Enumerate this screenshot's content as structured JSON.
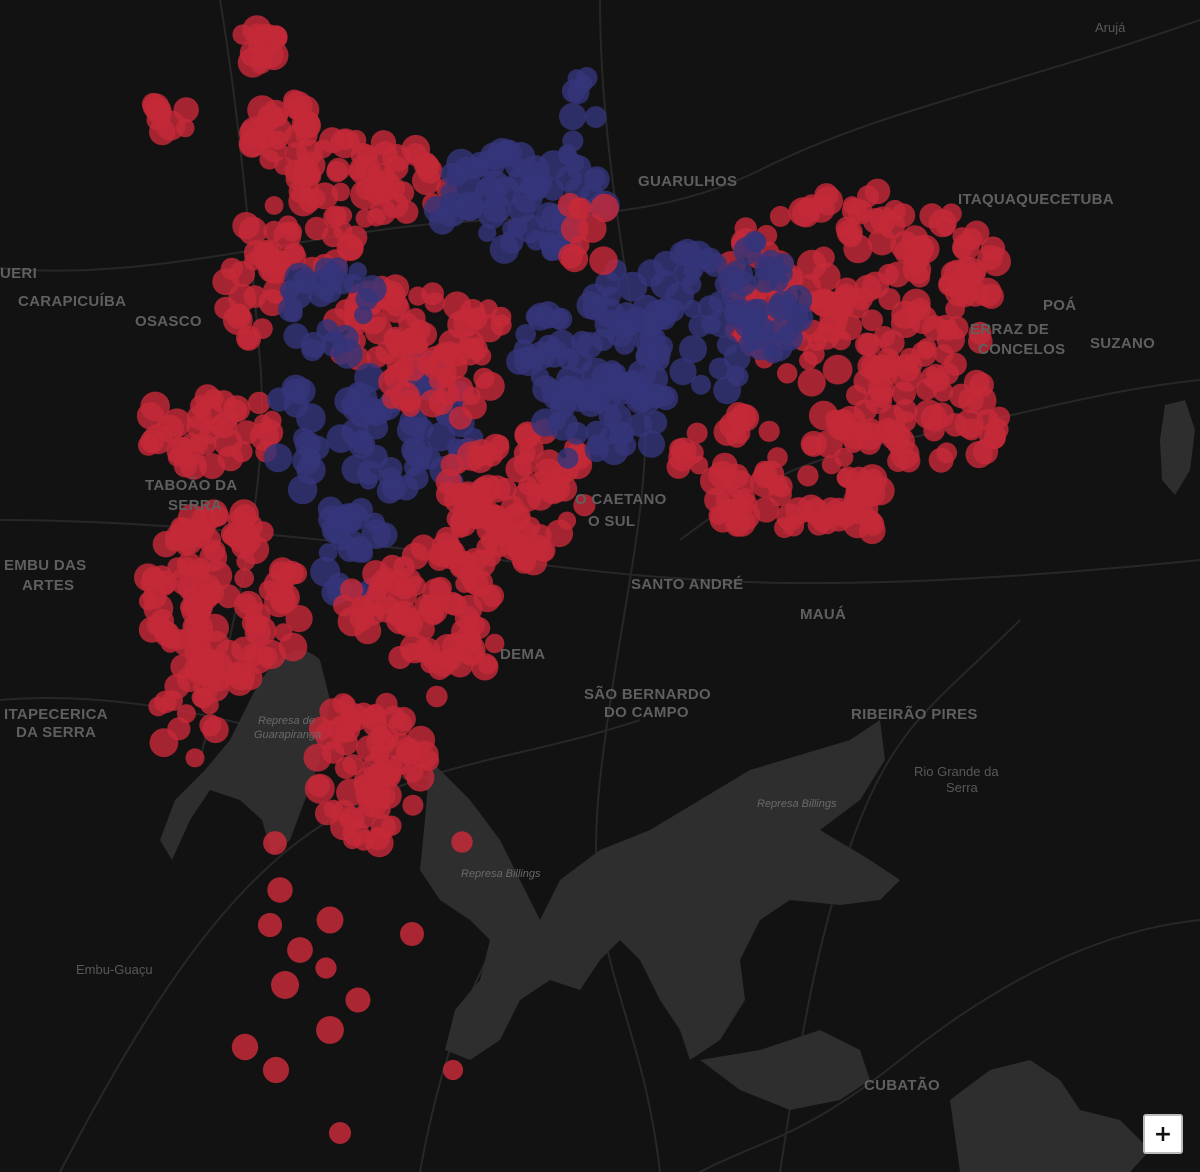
{
  "map": {
    "colors": {
      "background": "#121212",
      "water": "#2f2f2f",
      "roads": "#262626",
      "label": "#5f5f5f",
      "cluster_red": "#c42a38",
      "cluster_blue": "#35357a"
    },
    "labels": [
      {
        "id": "aruja",
        "text": "Arujá"
      },
      {
        "id": "guarulhos",
        "text": "GUARULHOS"
      },
      {
        "id": "itaquaquecetuba",
        "text": "ITAQUAQUECETUBA"
      },
      {
        "id": "barueri",
        "text": "UERI"
      },
      {
        "id": "carapicuiba",
        "text": "CARAPICUÍBA"
      },
      {
        "id": "osasco",
        "text": "OSASCO"
      },
      {
        "id": "poa",
        "text": "POÁ"
      },
      {
        "id": "ferraz-1",
        "text": "ERRAZ DE"
      },
      {
        "id": "ferraz-2",
        "text": "CONCELOS"
      },
      {
        "id": "suzano",
        "text": "SUZANO"
      },
      {
        "id": "taboao-1",
        "text": "TABOÃO DA"
      },
      {
        "id": "taboao-2",
        "text": "SERRA"
      },
      {
        "id": "scs-1",
        "text": "O CAETANO"
      },
      {
        "id": "scs-2",
        "text": "O SUL"
      },
      {
        "id": "embu-1",
        "text": "EMBU DAS"
      },
      {
        "id": "embu-2",
        "text": "ARTES"
      },
      {
        "id": "santo-andre",
        "text": "SANTO ANDRÉ"
      },
      {
        "id": "maua",
        "text": "MAUÁ"
      },
      {
        "id": "diadema",
        "text": "DEMA"
      },
      {
        "id": "sbc-1",
        "text": "SÃO BERNARDO"
      },
      {
        "id": "sbc-2",
        "text": "DO CAMPO"
      },
      {
        "id": "itapecerica-1",
        "text": "ITAPECERICA"
      },
      {
        "id": "itapecerica-2",
        "text": "DA SERRA"
      },
      {
        "id": "ribeirao-pires",
        "text": "RIBEIRÃO PIRES"
      },
      {
        "id": "rio-grande-1",
        "text": "Rio Grande da"
      },
      {
        "id": "rio-grande-2",
        "text": "Serra"
      },
      {
        "id": "represa-gua-1",
        "text": "Represa de"
      },
      {
        "id": "represa-gua-2",
        "text": "Guarapiranga"
      },
      {
        "id": "represa-billings-1",
        "text": "Represa Billings"
      },
      {
        "id": "represa-billings-2",
        "text": "Represa Billings"
      },
      {
        "id": "embu-guacu",
        "text": "Embu-Guaçu"
      },
      {
        "id": "cubatao",
        "text": "CUBATÃO"
      }
    ],
    "zoom_in_label": "+"
  }
}
